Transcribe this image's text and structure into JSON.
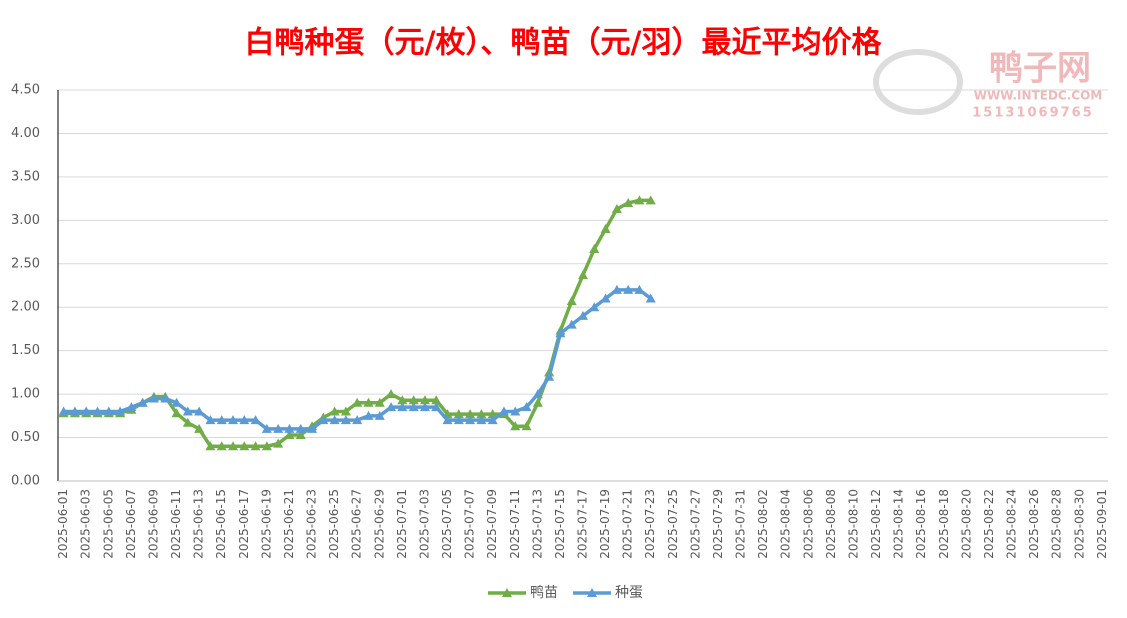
{
  "chart_data": {
    "type": "line",
    "title": "白鸭种蛋（元/枚）、鸭苗（元/羽）最近平均价格",
    "watermark": [
      "鸭子网",
      "WWW.INTEDC.COM",
      "15131069765"
    ],
    "categories": [
      "2025-06-01",
      null,
      "2025-06-03",
      null,
      "2025-06-05",
      null,
      "2025-06-07",
      null,
      "2025-06-09",
      null,
      "2025-06-11",
      null,
      "2025-06-13",
      null,
      "2025-06-15",
      null,
      "2025-06-17",
      null,
      "2025-06-19",
      null,
      "2025-06-21",
      null,
      "2025-06-23",
      null,
      "2025-06-25",
      null,
      "2025-06-27",
      null,
      "2025-06-29",
      null,
      "2025-07-01",
      null,
      "2025-07-03",
      null,
      "2025-07-05",
      null,
      "2025-07-07",
      null,
      "2025-07-09",
      null,
      "2025-07-11",
      null,
      "2025-07-13",
      null,
      "2025-07-15",
      null,
      "2025-07-17",
      null,
      "2025-07-19",
      null,
      "2025-07-21",
      null,
      "2025-07-23",
      null,
      "2025-07-25",
      null,
      "2025-07-27",
      null,
      "2025-07-29",
      null,
      "2025-07-31",
      null,
      "2025-08-02",
      null,
      "2025-08-04",
      null,
      "2025-08-06",
      null,
      "2025-08-08",
      null,
      "2025-08-10",
      null,
      "2025-08-12",
      null,
      "2025-08-14",
      null,
      "2025-08-16",
      null,
      "2025-08-18",
      null,
      "2025-08-20",
      null,
      "2025-08-22",
      null,
      "2025-08-24",
      null,
      "2025-08-26",
      null,
      "2025-08-28",
      null,
      "2025-08-30",
      null,
      "2025-09-01"
    ],
    "series": [
      {
        "name": "鸭苗",
        "color": "#70ad47",
        "values": [
          0.78,
          0.78,
          0.78,
          0.78,
          0.78,
          0.78,
          0.82,
          0.9,
          0.97,
          0.97,
          0.78,
          0.67,
          0.6,
          0.4,
          0.4,
          0.4,
          0.4,
          0.4,
          0.4,
          0.43,
          0.53,
          0.53,
          0.63,
          0.73,
          0.8,
          0.8,
          0.9,
          0.9,
          0.9,
          1.0,
          0.93,
          0.93,
          0.93,
          0.93,
          0.77,
          0.77,
          0.77,
          0.77,
          0.77,
          0.77,
          0.63,
          0.63,
          0.9,
          1.25,
          1.73,
          2.07,
          2.37,
          2.67,
          2.9,
          3.13,
          3.2,
          3.23,
          3.23,
          null,
          null,
          null,
          null,
          null,
          null,
          null,
          null,
          null,
          null,
          null,
          null,
          null,
          null,
          null,
          null,
          null,
          null,
          null,
          null,
          null,
          null,
          null,
          null,
          null,
          null,
          null,
          null,
          null,
          null,
          null,
          null,
          null,
          null,
          null,
          null,
          null,
          null,
          null,
          null
        ]
      },
      {
        "name": "种蛋",
        "color": "#5b9bd5",
        "values": [
          0.8,
          0.8,
          0.8,
          0.8,
          0.8,
          0.8,
          0.85,
          0.9,
          0.95,
          0.95,
          0.9,
          0.8,
          0.8,
          0.7,
          0.7,
          0.7,
          0.7,
          0.7,
          0.6,
          0.6,
          0.6,
          0.6,
          0.6,
          0.7,
          0.7,
          0.7,
          0.7,
          0.75,
          0.75,
          0.85,
          0.85,
          0.85,
          0.85,
          0.85,
          0.7,
          0.7,
          0.7,
          0.7,
          0.7,
          0.8,
          0.8,
          0.85,
          1.0,
          1.2,
          1.7,
          1.8,
          1.9,
          2.0,
          2.1,
          2.2,
          2.2,
          2.2,
          2.1,
          null,
          null,
          null,
          null,
          null,
          null,
          null,
          null,
          null,
          null,
          null,
          null,
          null,
          null,
          null,
          null,
          null,
          null,
          null,
          null,
          null,
          null,
          null,
          null,
          null,
          null,
          null,
          null,
          null,
          null,
          null,
          null,
          null,
          null,
          null,
          null,
          null,
          null,
          null,
          null
        ]
      }
    ],
    "ylim": [
      0,
      4.5
    ],
    "yticks": [
      {
        "value": 0,
        "label": "0.00"
      },
      {
        "value": 0.5,
        "label": "0.50"
      },
      {
        "value": 1,
        "label": "1.00"
      },
      {
        "value": 1.5,
        "label": "1.50"
      },
      {
        "value": 2,
        "label": "2.00"
      },
      {
        "value": 2.5,
        "label": "2.50"
      },
      {
        "value": 3,
        "label": "3.00"
      },
      {
        "value": 3.5,
        "label": "3.50"
      },
      {
        "value": 4,
        "label": "4.00"
      },
      {
        "value": 4.5,
        "label": "4.50"
      }
    ],
    "grid": true,
    "legend": "bottom"
  }
}
